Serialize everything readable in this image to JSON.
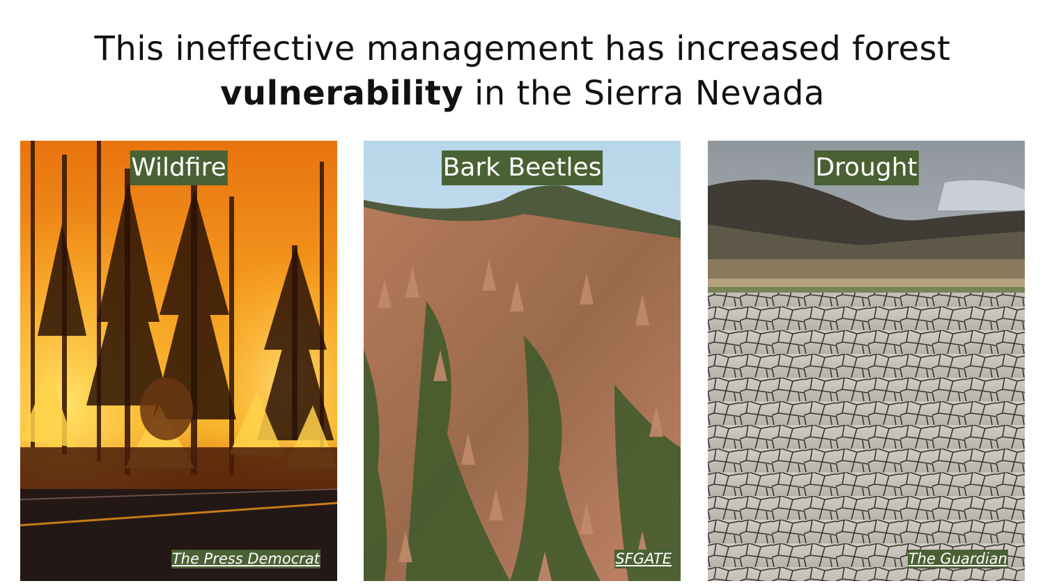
{
  "title": {
    "line1": "This ineffective management has increased forest",
    "line2_bold": "vulnerability",
    "line2_rest": " in the Sierra Nevada"
  },
  "panels": [
    {
      "label": "Wildfire",
      "credit": "The Press Democrat",
      "icon": "wildfire-photo"
    },
    {
      "label": "Bark Beetles",
      "credit": "SFGATE",
      "icon": "bark-beetle-forest-photo"
    },
    {
      "label": "Drought",
      "credit": "The Guardian",
      "icon": "drought-cracked-earth-photo"
    }
  ],
  "colors": {
    "label_bg": "#4a6134",
    "label_text": "#ffffff",
    "title_text": "#111111"
  }
}
